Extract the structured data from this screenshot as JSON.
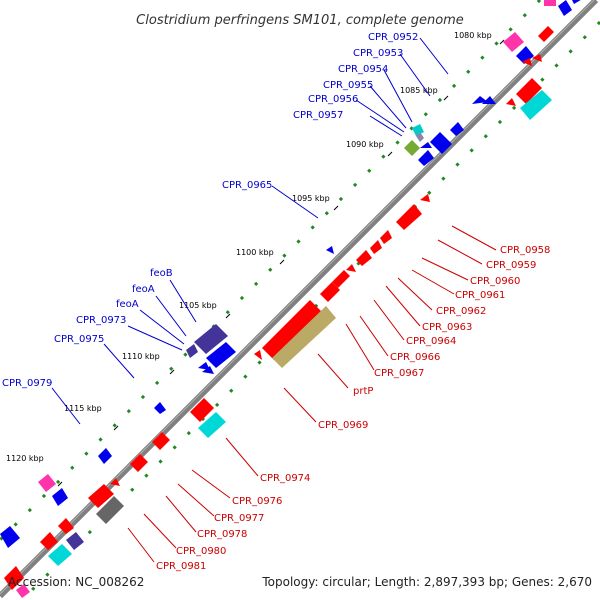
{
  "title": "Clostridium perfringens SM101, complete genome",
  "footer": {
    "accession": "Accession: NC_008262",
    "summary": "Topology: circular; Length: 2,897,393 bp; Genes: 2,670"
  },
  "colors": {
    "backbone": "#808080",
    "forward_label": "#0000cc",
    "reverse_label": "#cc0000",
    "gene_red": "#ff0000",
    "gene_blue": "#0000ee",
    "gene_cyan": "#00e0e0",
    "gene_magenta": "#ff33aa",
    "gene_navy": "#443399",
    "gene_olive": "#bbaa66",
    "gene_gray": "#666666",
    "gene_green": "#77aa33",
    "dot_green": "#228822"
  },
  "ticks": [
    "1080 kbp",
    "1085 kbp",
    "1090 kbp",
    "1095 kbp",
    "1100 kbp",
    "1105 kbp",
    "1110 kbp",
    "1115 kbp",
    "1120 kbp"
  ],
  "forward_labels": [
    "CPR_0952",
    "CPR_0953",
    "CPR_0954",
    "CPR_0955",
    "CPR_0956",
    "CPR_0957",
    "CPR_0965",
    "feoB",
    "feoA",
    "feoA",
    "CPR_0973",
    "CPR_0975",
    "CPR_0979"
  ],
  "reverse_labels": [
    "CPR_0958",
    "CPR_0959",
    "CPR_0960",
    "CPR_0961",
    "CPR_0962",
    "CPR_0963",
    "CPR_0964",
    "CPR_0966",
    "CPR_0967",
    "prtP",
    "CPR_0969",
    "CPR_0974",
    "CPR_0976",
    "CPR_0977",
    "CPR_0978",
    "CPR_0980",
    "CPR_0981"
  ]
}
